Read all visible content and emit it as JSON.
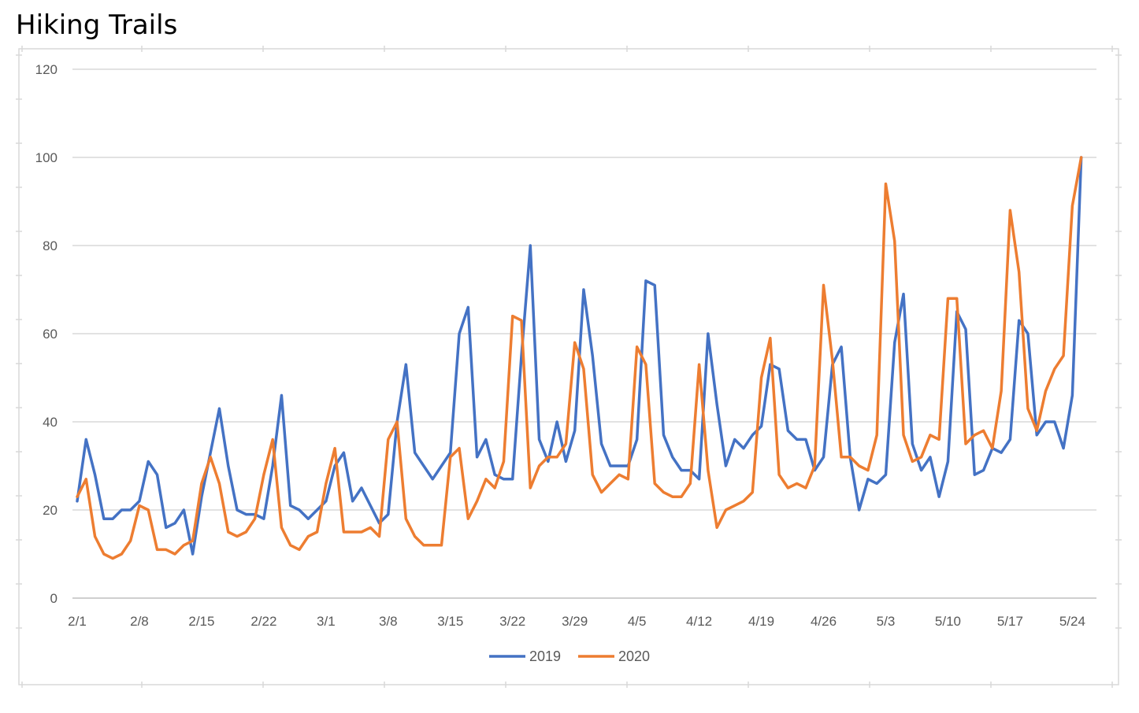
{
  "title": "Hiking Trails",
  "chart_data": {
    "type": "line",
    "title": "",
    "xlabel": "",
    "ylabel": "",
    "ylim": [
      0,
      120
    ],
    "yticks": [
      0,
      20,
      40,
      60,
      80,
      100,
      120
    ],
    "x_tick_labels": [
      "2/1",
      "2/8",
      "2/15",
      "2/22",
      "3/1",
      "3/8",
      "3/15",
      "3/22",
      "3/29",
      "4/5",
      "4/12",
      "4/19",
      "4/26",
      "5/3",
      "5/10",
      "5/17",
      "5/24"
    ],
    "x_tick_interval_days": 7,
    "grid": "horizontal",
    "legend_position": "bottom",
    "series": [
      {
        "name": "2019",
        "color": "#4472C4",
        "values": [
          22,
          36,
          28,
          18,
          18,
          20,
          20,
          22,
          31,
          28,
          16,
          17,
          20,
          10,
          23,
          33,
          43,
          30,
          20,
          19,
          19,
          18,
          30,
          46,
          21,
          20,
          18,
          20,
          22,
          30,
          33,
          22,
          25,
          21,
          17,
          19,
          40,
          53,
          33,
          30,
          27,
          30,
          33,
          60,
          66,
          32,
          36,
          28,
          27,
          27,
          55,
          80,
          36,
          31,
          40,
          31,
          38,
          70,
          55,
          35,
          30,
          30,
          30,
          36,
          72,
          71,
          37,
          32,
          29,
          29,
          27,
          60,
          44,
          30,
          36,
          34,
          37,
          39,
          53,
          52,
          38,
          36,
          36,
          29,
          32,
          53,
          57,
          32,
          20,
          27,
          26,
          28,
          58,
          69,
          35,
          29,
          32,
          23,
          31,
          65,
          61,
          28,
          29,
          34,
          33,
          36,
          63,
          60,
          37,
          40,
          40,
          34,
          46,
          100
        ]
      },
      {
        "name": "2020",
        "color": "#ED7D31",
        "values": [
          23,
          27,
          14,
          10,
          9,
          10,
          13,
          21,
          20,
          11,
          11,
          10,
          12,
          13,
          26,
          32,
          26,
          15,
          14,
          15,
          18,
          28,
          36,
          16,
          12,
          11,
          14,
          15,
          26,
          34,
          15,
          15,
          15,
          16,
          14,
          36,
          40,
          18,
          14,
          12,
          12,
          12,
          32,
          34,
          18,
          22,
          27,
          25,
          31,
          64,
          63,
          25,
          30,
          32,
          32,
          35,
          58,
          52,
          28,
          24,
          26,
          28,
          27,
          57,
          53,
          26,
          24,
          23,
          23,
          26,
          53,
          29,
          16,
          20,
          21,
          22,
          24,
          50,
          59,
          28,
          25,
          26,
          25,
          30,
          71,
          54,
          32,
          32,
          30,
          29,
          37,
          94,
          81,
          37,
          31,
          32,
          37,
          36,
          68,
          68,
          35,
          37,
          38,
          34,
          47,
          88,
          74,
          43,
          38,
          47,
          52,
          55,
          89,
          100
        ]
      }
    ]
  }
}
